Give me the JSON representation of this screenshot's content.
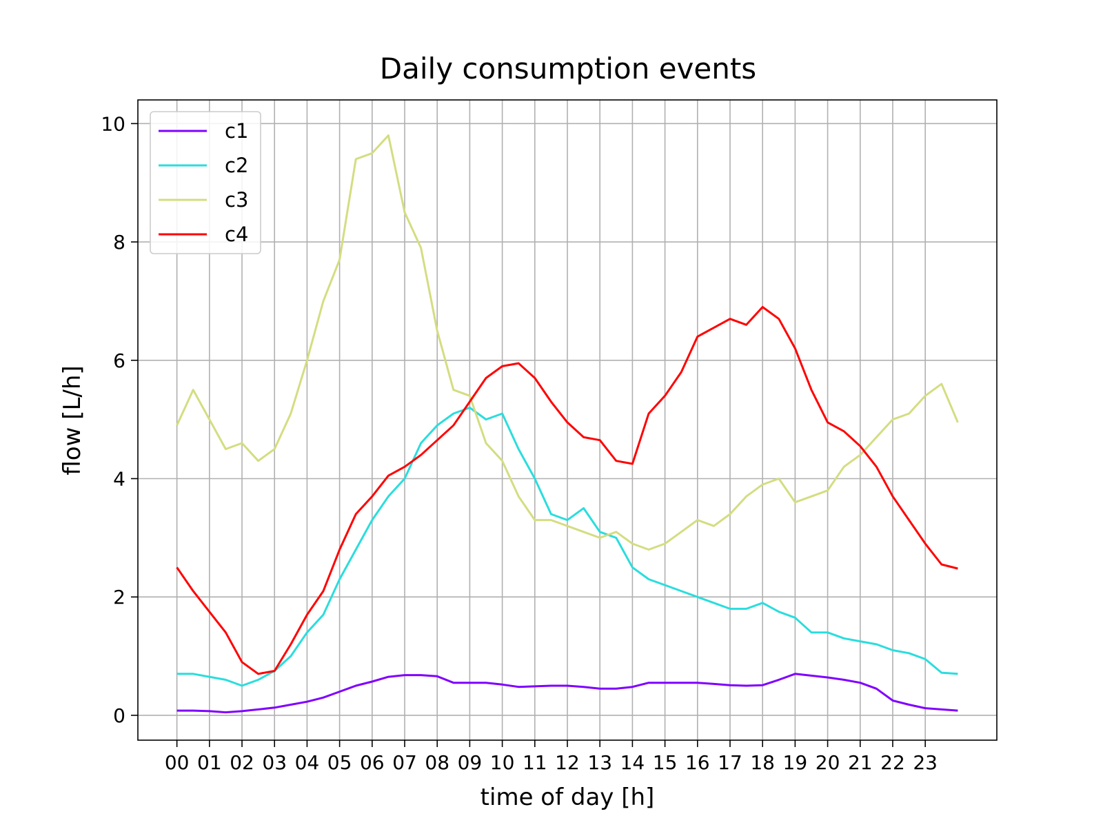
{
  "chart_data": {
    "type": "line",
    "title": "Daily consumption events",
    "xlabel": "time of day [h]",
    "ylabel": "flow [L/h]",
    "x_ticks": [
      "00",
      "01",
      "02",
      "03",
      "04",
      "05",
      "06",
      "07",
      "08",
      "09",
      "10",
      "11",
      "12",
      "13",
      "14",
      "15",
      "16",
      "17",
      "18",
      "19",
      "20",
      "21",
      "22",
      "23"
    ],
    "y_ticks": [
      "0",
      "2",
      "4",
      "6",
      "8",
      "10"
    ],
    "xlim": [
      -1.2,
      25.2
    ],
    "ylim": [
      -0.42,
      10.4
    ],
    "grid": true,
    "legend_position": "top-left",
    "x_hours": [
      0,
      0.5,
      1,
      1.5,
      2,
      2.5,
      3,
      3.5,
      4,
      4.5,
      5,
      5.5,
      6,
      6.5,
      7,
      7.5,
      8,
      8.5,
      9,
      9.5,
      10,
      10.5,
      11,
      11.5,
      12,
      12.5,
      13,
      13.5,
      14,
      14.5,
      15,
      15.5,
      16,
      16.5,
      17,
      17.5,
      18,
      18.5,
      19,
      19.5,
      20,
      20.5,
      21,
      21.5,
      22,
      22.5,
      23,
      23.5,
      24
    ],
    "series": [
      {
        "name": "c1",
        "color": "#8000ff",
        "values": [
          0.08,
          0.08,
          0.07,
          0.05,
          0.07,
          0.1,
          0.13,
          0.18,
          0.23,
          0.3,
          0.4,
          0.5,
          0.57,
          0.65,
          0.68,
          0.68,
          0.66,
          0.55,
          0.55,
          0.55,
          0.52,
          0.48,
          0.49,
          0.5,
          0.5,
          0.48,
          0.45,
          0.45,
          0.48,
          0.55,
          0.55,
          0.55,
          0.55,
          0.53,
          0.51,
          0.5,
          0.51,
          0.6,
          0.7,
          0.67,
          0.64,
          0.6,
          0.55,
          0.45,
          0.25,
          0.18,
          0.12,
          0.1,
          0.08
        ]
      },
      {
        "name": "c2",
        "color": "#2adddd",
        "values": [
          0.7,
          0.7,
          0.65,
          0.6,
          0.5,
          0.6,
          0.75,
          1.0,
          1.4,
          1.7,
          2.3,
          2.8,
          3.3,
          3.7,
          4.0,
          4.6,
          4.9,
          5.1,
          5.2,
          5.0,
          5.1,
          4.5,
          4.0,
          3.4,
          3.3,
          3.5,
          3.1,
          3.0,
          2.5,
          2.3,
          2.2,
          2.1,
          2.0,
          1.9,
          1.8,
          1.8,
          1.9,
          1.75,
          1.65,
          1.4,
          1.4,
          1.3,
          1.25,
          1.2,
          1.1,
          1.05,
          0.95,
          0.72,
          0.7
        ]
      },
      {
        "name": "c3",
        "color": "#d4dd80",
        "values": [
          4.9,
          5.5,
          5.0,
          4.5,
          4.6,
          4.3,
          4.5,
          5.1,
          6.0,
          7.0,
          7.7,
          9.4,
          9.5,
          9.8,
          8.5,
          7.9,
          6.5,
          5.5,
          5.4,
          4.6,
          4.3,
          3.7,
          3.3,
          3.3,
          3.2,
          3.1,
          3.0,
          3.1,
          2.9,
          2.8,
          2.9,
          3.1,
          3.3,
          3.2,
          3.4,
          3.7,
          3.9,
          4.0,
          3.6,
          3.7,
          3.8,
          4.2,
          4.4,
          4.7,
          5.0,
          5.1,
          5.4,
          5.6,
          4.95
        ]
      },
      {
        "name": "c4",
        "color": "#ff0000",
        "values": [
          2.5,
          2.1,
          1.75,
          1.4,
          0.9,
          0.7,
          0.75,
          1.2,
          1.7,
          2.1,
          2.8,
          3.4,
          3.7,
          4.05,
          4.2,
          4.4,
          4.65,
          4.9,
          5.3,
          5.7,
          5.9,
          5.95,
          5.7,
          5.3,
          4.95,
          4.7,
          4.65,
          4.3,
          4.25,
          5.1,
          5.4,
          5.8,
          6.4,
          6.55,
          6.7,
          6.6,
          6.9,
          6.7,
          6.2,
          5.5,
          4.95,
          4.8,
          4.55,
          4.2,
          3.7,
          3.3,
          2.9,
          2.55,
          2.48
        ]
      }
    ]
  }
}
